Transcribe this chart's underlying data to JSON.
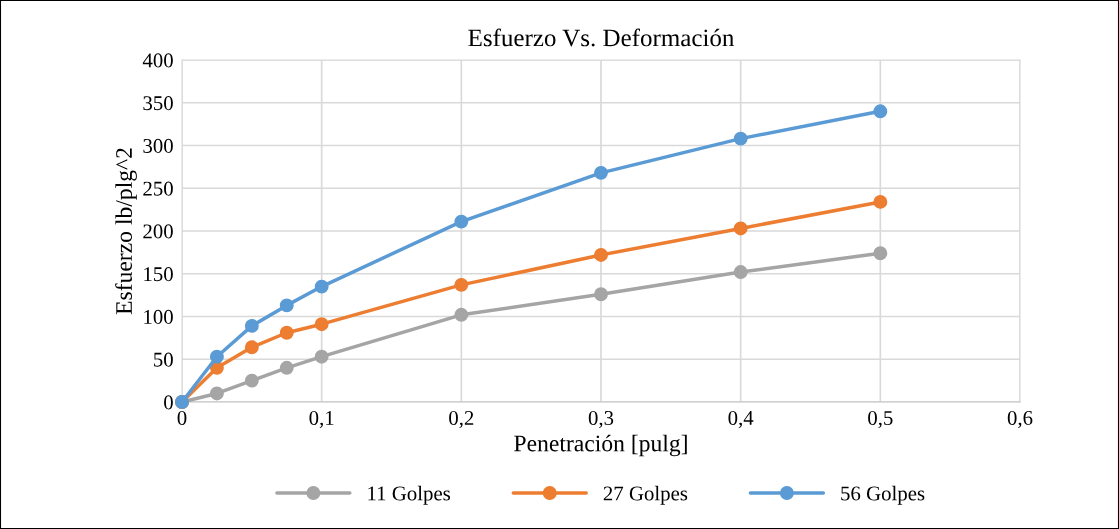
{
  "chart_data": {
    "type": "line",
    "title": "Esfuerzo Vs. Deformación",
    "xlabel": "Penetración [pulg]",
    "ylabel": "Esfuerzo lb/plg^2",
    "x": [
      0,
      0.025,
      0.05,
      0.075,
      0.1,
      0.2,
      0.3,
      0.4,
      0.5
    ],
    "series": [
      {
        "name": "11 Golpes",
        "color": "#a5a5a5",
        "values": [
          0,
          10,
          25,
          40,
          53,
          102,
          126,
          152,
          174
        ]
      },
      {
        "name": "27 Golpes",
        "color": "#ed7d31",
        "values": [
          0,
          40,
          64,
          81,
          91,
          137,
          172,
          203,
          234
        ]
      },
      {
        "name": "56 Golpes",
        "color": "#5b9bd5",
        "values": [
          0,
          53,
          89,
          113,
          135,
          211,
          268,
          308,
          340
        ]
      }
    ],
    "xlim": [
      0,
      0.6
    ],
    "xticks": [
      {
        "value": 0,
        "label": "0"
      },
      {
        "value": 0.1,
        "label": "0,1"
      },
      {
        "value": 0.2,
        "label": "0,2"
      },
      {
        "value": 0.3,
        "label": "0,3"
      },
      {
        "value": 0.4,
        "label": "0,4"
      },
      {
        "value": 0.5,
        "label": "0,5"
      },
      {
        "value": 0.6,
        "label": "0,6"
      }
    ],
    "ylim": [
      0,
      400
    ],
    "yticks": [
      0,
      50,
      100,
      150,
      200,
      250,
      300,
      350,
      400
    ],
    "grid": true,
    "legend": "bottom",
    "marker": "circle",
    "line_style": "solid"
  }
}
